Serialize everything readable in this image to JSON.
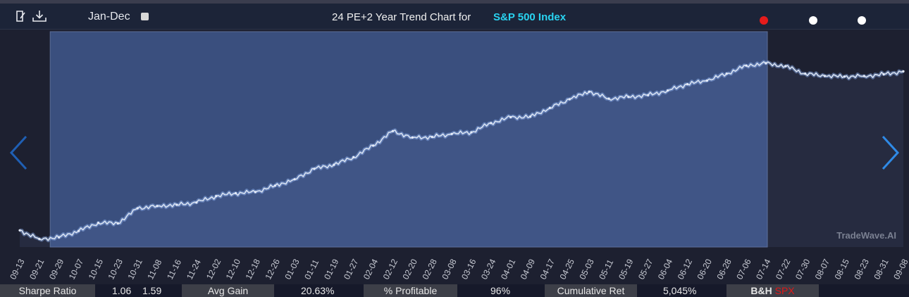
{
  "header": {
    "range_label": "Jan-Dec",
    "title": "24 PE+2 Year Trend Chart for",
    "symbol": "S&P 500 Index",
    "icons": [
      "document-icon",
      "download-icon",
      "nav-left-arrow-icon",
      "nav-right-arrow-icon"
    ],
    "dots": [
      {
        "name": "indicator-dot-red",
        "color": "#e51b1b"
      },
      {
        "name": "indicator-dot-white-1",
        "color": "#ffffff"
      },
      {
        "name": "indicator-dot-white-2",
        "color": "#ffffff"
      }
    ]
  },
  "watermark": "TradeWave.AI",
  "colors": {
    "chart_background": "#1d2030",
    "highlight_fill": "#3a4f7e",
    "line": "#d8e2f2"
  },
  "chart_data": {
    "type": "line",
    "title": "24 PE+2 Year Trend Chart for S&P 500 Index",
    "x": [
      "09-13",
      "09-21",
      "09-29",
      "10-07",
      "10-15",
      "10-23",
      "10-31",
      "11-08",
      "11-16",
      "11-24",
      "12-02",
      "12-10",
      "12-18",
      "12-26",
      "01-03",
      "01-11",
      "01-19",
      "01-27",
      "02-04",
      "02-12",
      "02-20",
      "02-28",
      "03-08",
      "03-16",
      "03-24",
      "04-01",
      "04-09",
      "04-17",
      "04-25",
      "05-03",
      "05-11",
      "05-19",
      "05-27",
      "06-04",
      "06-12",
      "06-20",
      "06-28",
      "07-06",
      "07-14",
      "07-22",
      "07-30",
      "08-07",
      "08-15",
      "08-23",
      "08-31",
      "09-08"
    ],
    "series": [
      {
        "values": [
          100.0,
          98.5,
          98.8,
          99.9,
          101.3,
          101.2,
          103.8,
          104.2,
          104.4,
          104.8,
          105.9,
          106.4,
          106.6,
          107.7,
          108.8,
          110.6,
          111.3,
          112.6,
          114.6,
          117.1,
          116.0,
          116.1,
          116.6,
          116.9,
          118.5,
          119.5,
          119.6,
          121.1,
          122.6,
          123.9,
          122.7,
          123.0,
          123.3,
          124.1,
          125.2,
          125.8,
          127.0,
          128.4,
          128.8,
          128.3,
          127.0,
          126.6,
          126.5,
          126.6,
          126.9,
          127.4
        ]
      }
    ],
    "highlight_range": [
      "09-21",
      "07-16"
    ],
    "grid": false,
    "legend": "none"
  },
  "stats": {
    "sharpe": {
      "label": "Sharpe Ratio",
      "value1": "1.06",
      "value2": "1.59"
    },
    "avg_gain": {
      "label": "Avg Gain",
      "value": "20.63%"
    },
    "profitable": {
      "label": "% Profitable",
      "value": "96%"
    },
    "cumulative": {
      "label": "Cumulative Ret",
      "value": "5,045%"
    },
    "bh": {
      "label": "B&H",
      "symbol": "SPX"
    }
  }
}
